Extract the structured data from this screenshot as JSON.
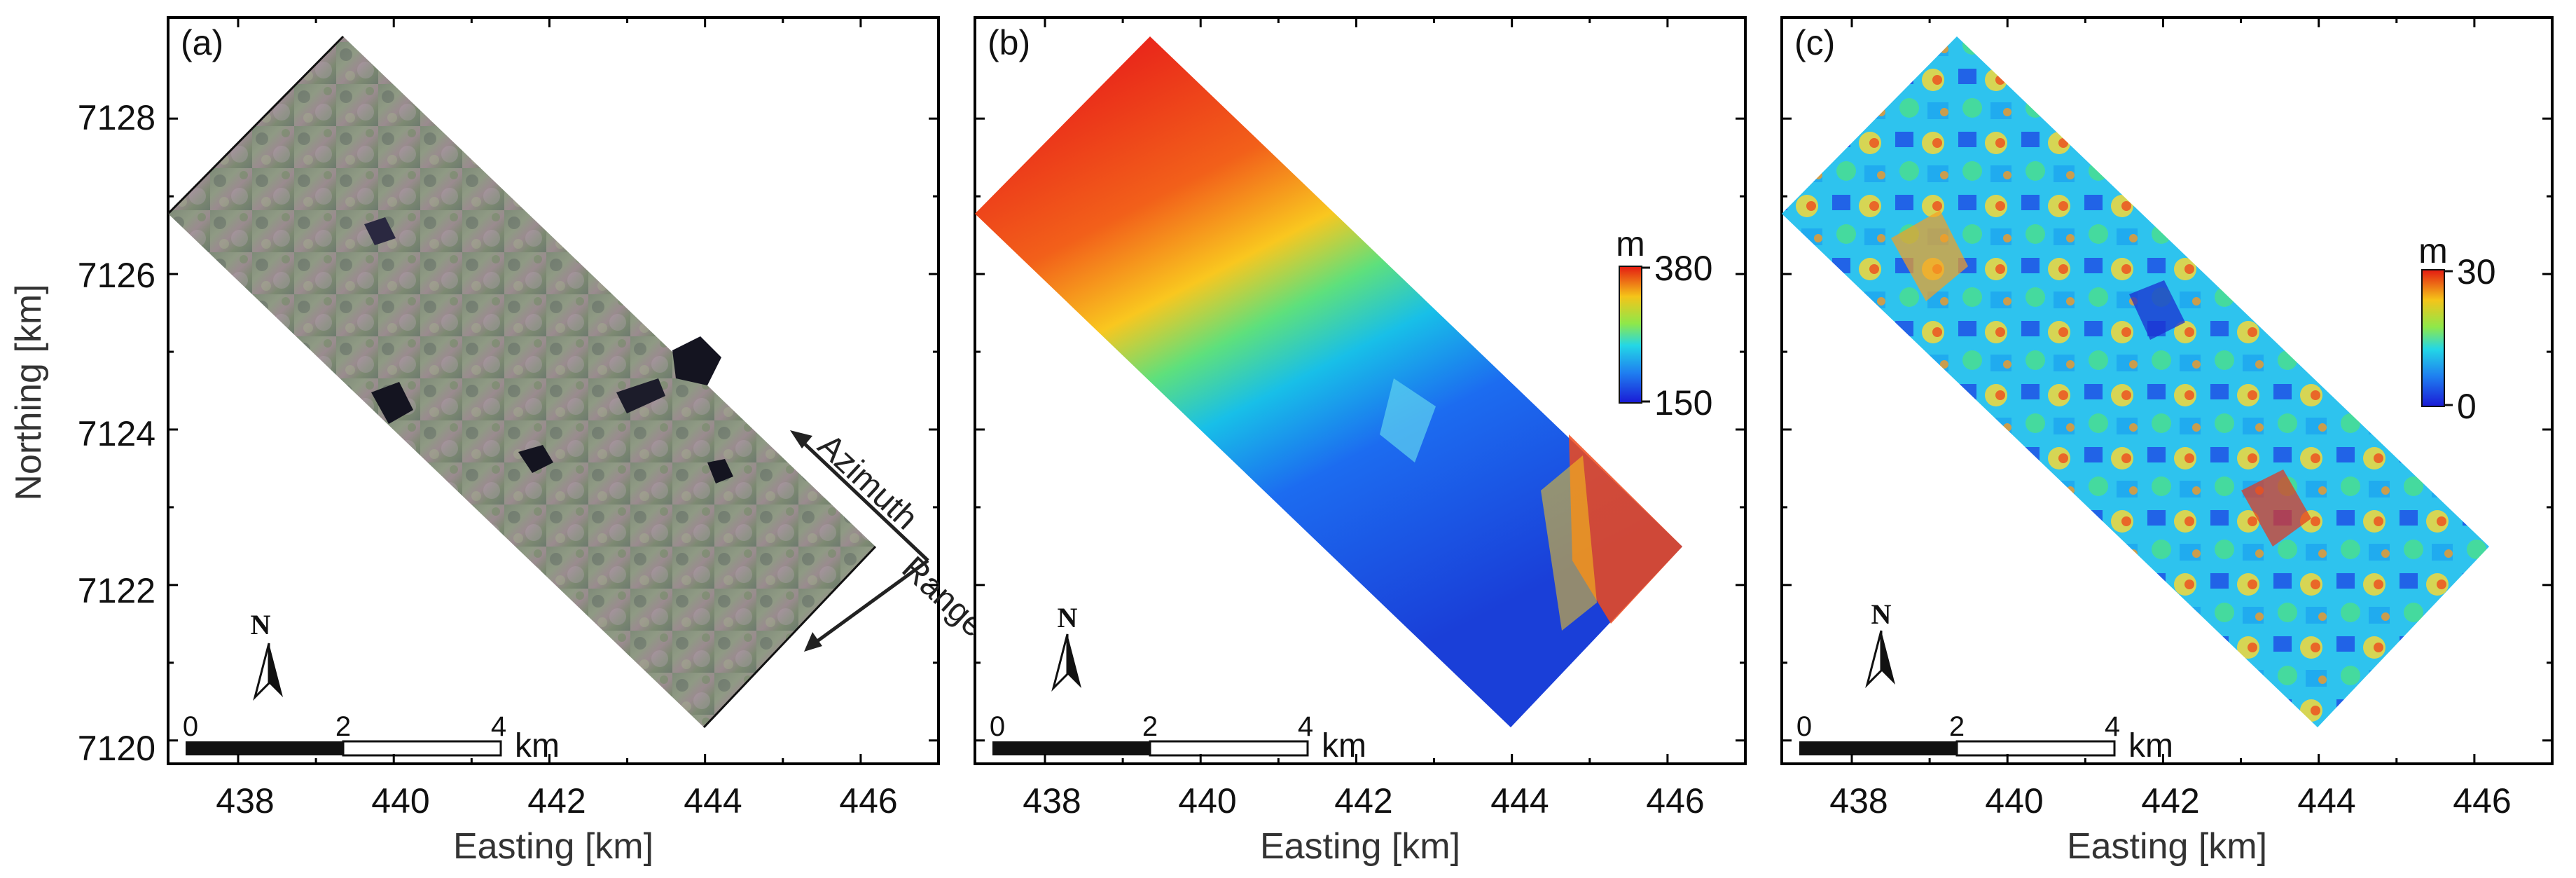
{
  "figure": {
    "panels": [
      {
        "id": "a",
        "label": "(a)",
        "content": "SAR image"
      },
      {
        "id": "b",
        "label": "(b)",
        "content": "Elevation",
        "colorbar": {
          "unit": "m",
          "max_label": "380",
          "min_label": "150",
          "max": 380,
          "min": 150
        }
      },
      {
        "id": "c",
        "label": "(c)",
        "content": "Height error",
        "colorbar": {
          "unit": "m",
          "max_label": "30",
          "min_label": "0",
          "max": 30,
          "min": 0
        }
      }
    ],
    "x_axis": {
      "title": "Easting [km]",
      "ticks": [
        "438",
        "440",
        "442",
        "444",
        "446"
      ],
      "tick_values": [
        438,
        440,
        442,
        444,
        446
      ],
      "range": [
        437.1,
        447.0
      ]
    },
    "y_axis": {
      "title": "Northing [km]",
      "ticks": [
        "7120",
        "7122",
        "7124",
        "7126",
        "7128"
      ],
      "tick_values": [
        7120,
        7122,
        7124,
        7126,
        7128
      ],
      "range": [
        7119.7,
        7129.3
      ]
    },
    "scale_bar": {
      "labels": [
        "0",
        "2",
        "4"
      ],
      "unit": "km"
    },
    "north_arrow": {
      "label": "N"
    },
    "look_direction": {
      "azimuth": "Azimuth",
      "range": "Range"
    },
    "colors": {
      "elev_low": "#1a2fd6",
      "elev_high": "#e81c10",
      "sar_mid": "#8a8f7d"
    }
  }
}
